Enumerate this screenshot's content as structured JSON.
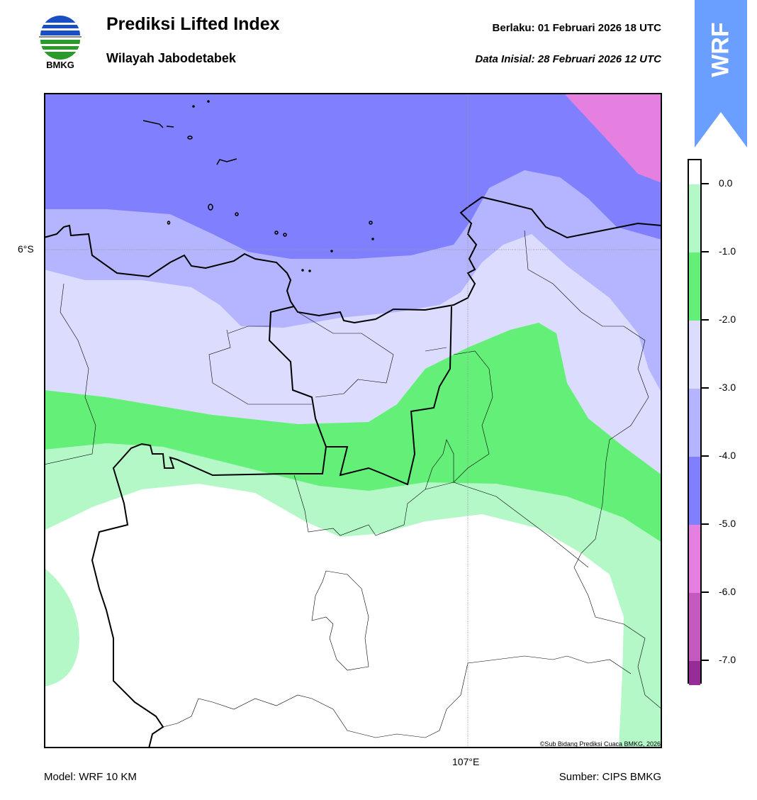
{
  "header": {
    "logo_text": "BMKG",
    "title": "Prediksi Lifted Index",
    "subtitle": "Wilayah Jabodetabek",
    "valid_label": "Berlaku:  01 Februari 2026 18 UTC",
    "init_label": "Data Inisial:  28 Februari 2026 12 UTC",
    "badge": "WRF"
  },
  "map": {
    "lat_label": "6°S",
    "lon_label": "107°E",
    "copyright": "©Sub Bidang Prediksi Cuaca BMKG, 2026"
  },
  "colorbar": {
    "segments": [
      {
        "range": "> 0.0",
        "color": "#ffffff"
      },
      {
        "range": "0.0 to -1.0",
        "color": "#b4f8c8"
      },
      {
        "range": "-1.0 to -2.0",
        "color": "#64f078"
      },
      {
        "range": "-2.0 to -3.0",
        "color": "#dcdcff"
      },
      {
        "range": "-3.0 to -4.0",
        "color": "#b4b4ff"
      },
      {
        "range": "-4.0 to -5.0",
        "color": "#8080ff"
      },
      {
        "range": "-5.0 to -6.0",
        "color": "#e680e0"
      },
      {
        "range": "-6.0 to -7.0",
        "color": "#c45ac0"
      },
      {
        "range": "< -7.0",
        "color": "#962d96"
      }
    ],
    "ticks": [
      "0.0",
      "-1.0",
      "-2.0",
      "-3.0",
      "-4.0",
      "-5.0",
      "-6.0",
      "-7.0"
    ]
  },
  "footer": {
    "model": "Model: WRF 10 KM",
    "source": "Sumber: CIPS BMKG"
  }
}
